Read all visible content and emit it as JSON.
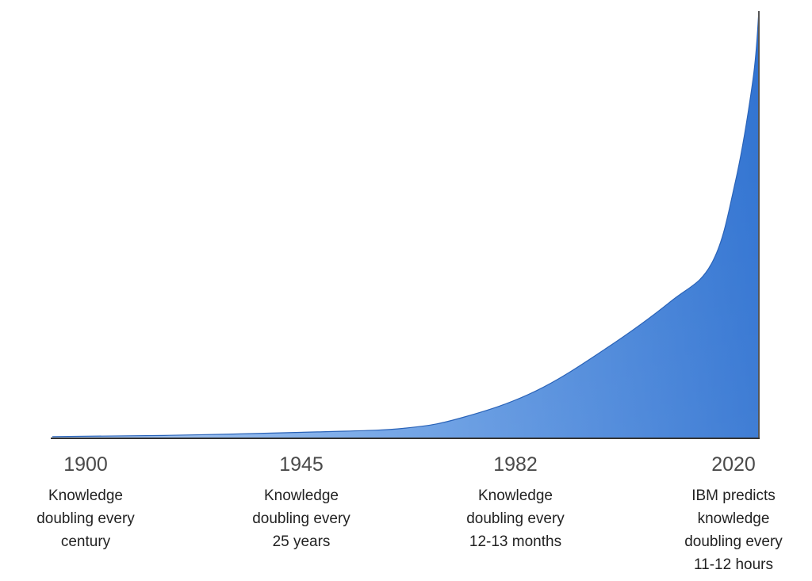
{
  "chart_data": {
    "type": "area",
    "title": "",
    "xlabel": "",
    "ylabel": "",
    "grid": false,
    "legend": "none",
    "x_ticks": [
      "1900",
      "1945",
      "1982",
      "2020"
    ],
    "tick_descriptions": [
      [
        "Knowledge",
        "doubling every",
        "century"
      ],
      [
        "Knowledge",
        "doubling every",
        "25 years"
      ],
      [
        "Knowledge",
        "doubling every",
        "12-13 months"
      ],
      [
        "IBM predicts",
        "knowledge",
        "doubling every",
        "11-12 hours"
      ]
    ],
    "series": [
      {
        "values": [
          {
            "x": 1900,
            "y": 0.4
          },
          {
            "x": 1920,
            "y": 0.7
          },
          {
            "x": 1945,
            "y": 1.5
          },
          {
            "x": 1960,
            "y": 2.4
          },
          {
            "x": 1970,
            "y": 5
          },
          {
            "x": 1982,
            "y": 11
          },
          {
            "x": 1994,
            "y": 21
          },
          {
            "x": 2005,
            "y": 32
          },
          {
            "x": 2012,
            "y": 41
          },
          {
            "x": 2016,
            "y": 60
          },
          {
            "x": 2019,
            "y": 84
          },
          {
            "x": 2020,
            "y": 100
          }
        ]
      }
    ],
    "xlim": [
      1900,
      2020
    ],
    "ylim": [
      0,
      100
    ],
    "fill_color": "#3d7fd6",
    "axis_color": "#333333"
  }
}
